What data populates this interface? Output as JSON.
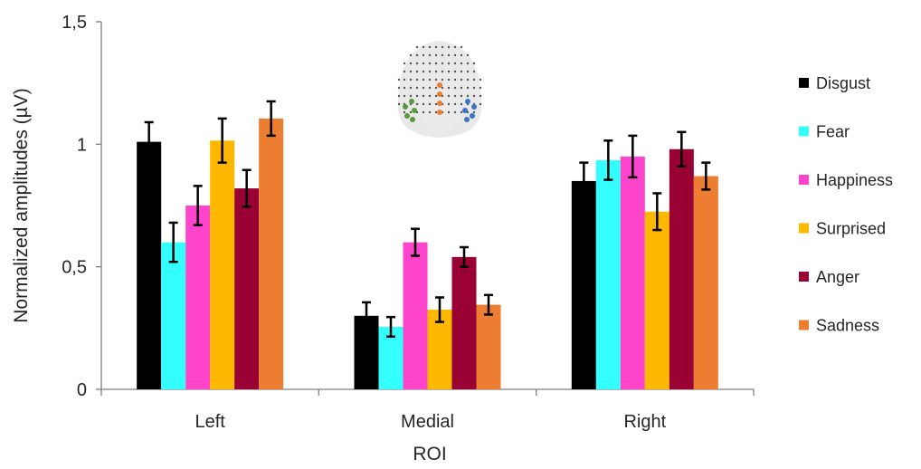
{
  "chart_data": {
    "type": "bar",
    "xlabel": "ROI",
    "ylabel": "Normalized amplitudes (µV)",
    "categories": [
      "Left",
      "Medial",
      "Right"
    ],
    "ylim": [
      0,
      1.5
    ],
    "yticks": [
      0,
      0.5,
      1,
      1.5
    ],
    "ytick_labels": [
      "0",
      "0,5",
      "1",
      "1,5"
    ],
    "legend_position": "right",
    "grid": false,
    "error_bars": true,
    "series": [
      {
        "name": "Disgust",
        "color": "#000000",
        "values": [
          1.01,
          0.3,
          0.85
        ],
        "errors": [
          0.08,
          0.055,
          0.075
        ]
      },
      {
        "name": "Fear",
        "color": "#33ffff",
        "values": [
          0.6,
          0.255,
          0.935
        ],
        "errors": [
          0.08,
          0.04,
          0.08
        ]
      },
      {
        "name": "Happiness",
        "color": "#ff44cc",
        "values": [
          0.75,
          0.6,
          0.95
        ],
        "errors": [
          0.08,
          0.055,
          0.085
        ]
      },
      {
        "name": "Surprised",
        "color": "#ffb800",
        "values": [
          1.015,
          0.325,
          0.725
        ],
        "errors": [
          0.09,
          0.05,
          0.075
        ]
      },
      {
        "name": "Anger",
        "color": "#990033",
        "values": [
          0.82,
          0.54,
          0.98
        ],
        "errors": [
          0.075,
          0.04,
          0.07
        ]
      },
      {
        "name": "Sadness",
        "color": "#ed7d31",
        "values": [
          1.105,
          0.345,
          0.87
        ],
        "errors": [
          0.07,
          0.04,
          0.055
        ]
      }
    ]
  },
  "inset": {
    "name": "scalp electrode map",
    "dot_color": "#555555",
    "roi_colors": {
      "left": "#5a9a3a",
      "medial": "#ed7d31",
      "right": "#3a74c4"
    }
  }
}
